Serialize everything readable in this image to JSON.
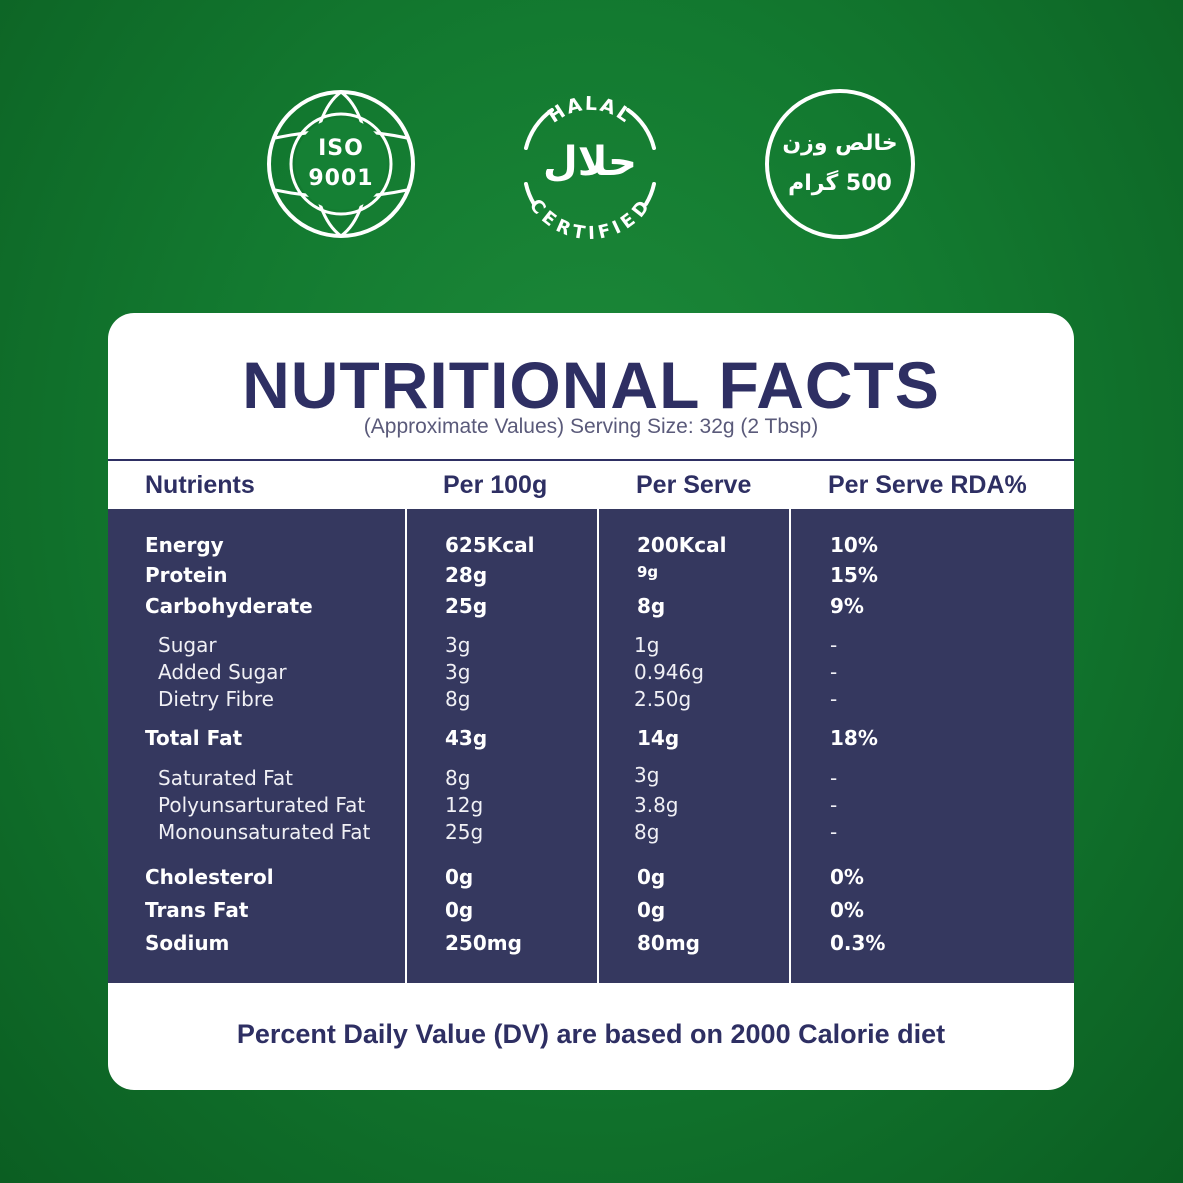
{
  "badges": {
    "iso": {
      "line1": "ISO",
      "line2": "9001"
    },
    "halal": {
      "top": "HALAL",
      "arabic": "حلال",
      "bottom": "CERTIFIED"
    },
    "weight": {
      "line1": "خالص وزن",
      "line2": "500 گرام"
    }
  },
  "title": "NUTRITIONAL FACTS",
  "subtitle": "(Approximate Values) Serving Size: 32g (2 Tbsp)",
  "columns": [
    "Nutrients",
    "Per 100g",
    "Per Serve",
    "Per Serve RDA%"
  ],
  "rows": [
    {
      "name": "Energy",
      "per100": "625Kcal",
      "serve": "200Kcal",
      "rda": "10%"
    },
    {
      "name": "Protein",
      "per100": "28g",
      "serve": "9g",
      "rda": "15%"
    },
    {
      "name": "Carbohyderate",
      "per100": "25g",
      "serve": "8g",
      "rda": "9%"
    },
    {
      "name": "Sugar",
      "per100": "3g",
      "serve": "1g",
      "rda": "-"
    },
    {
      "name": "Added Sugar",
      "per100": "3g",
      "serve": "0.946g",
      "rda": "-"
    },
    {
      "name": "Dietry Fibre",
      "per100": "8g",
      "serve": "2.50g",
      "rda": "-"
    },
    {
      "name": "Total Fat",
      "per100": "43g",
      "serve": "14g",
      "rda": "18%"
    },
    {
      "name": "Saturated Fat",
      "per100": "8g",
      "serve": "3g",
      "rda": "-"
    },
    {
      "name": "Polyunsarturated Fat",
      "per100": "12g",
      "serve": "3.8g",
      "rda": "-"
    },
    {
      "name": "Monounsaturated Fat",
      "per100": "25g",
      "serve": "8g",
      "rda": "-"
    },
    {
      "name": "Cholesterol",
      "per100": "0g",
      "serve": "0g",
      "rda": "0%"
    },
    {
      "name": "Trans Fat",
      "per100": "0g",
      "serve": "0g",
      "rda": "0%"
    },
    {
      "name": "Sodium",
      "per100": "250mg",
      "serve": "80mg",
      "rda": "0.3%"
    }
  ],
  "footer": "Percent Daily Value (DV) are based on 2000 Calorie diet",
  "colors": {
    "background": "#137a30",
    "navy": "#2e2f63",
    "table": "#35385f"
  }
}
